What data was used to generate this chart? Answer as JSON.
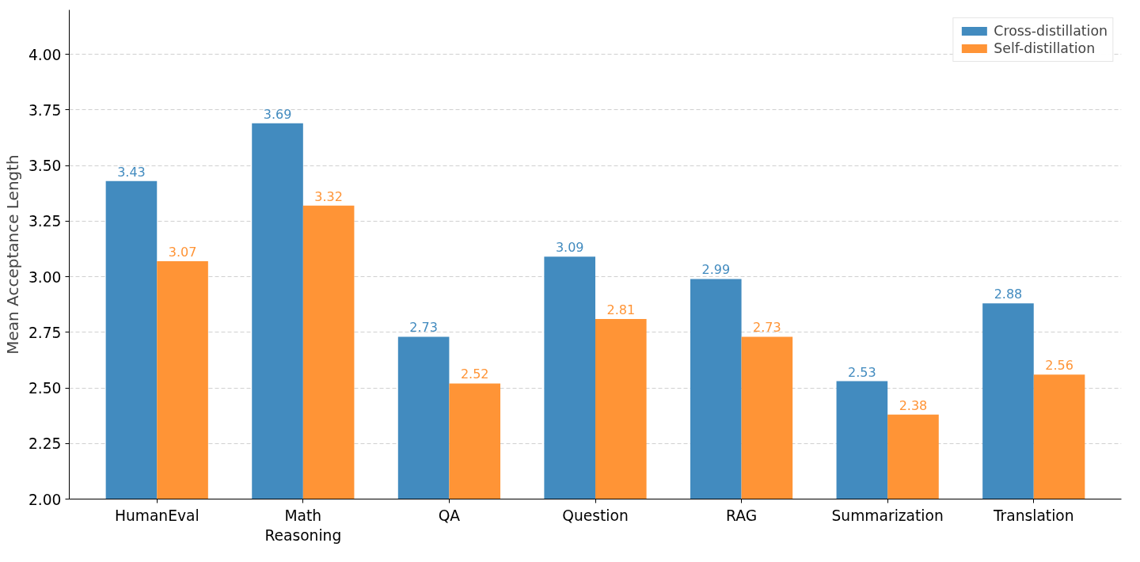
{
  "chart_data": {
    "type": "bar",
    "ylabel": "Mean Acceptance Length",
    "categories": [
      "HumanEval",
      "Math\nReasoning",
      "QA",
      "Question",
      "RAG",
      "Summarization",
      "Translation"
    ],
    "series": [
      {
        "name": "Cross-distillation",
        "color": "#428bbf",
        "values": [
          3.43,
          3.69,
          2.73,
          3.09,
          2.99,
          2.53,
          2.88
        ]
      },
      {
        "name": "Self-distillation",
        "color": "#ff9436",
        "values": [
          3.07,
          3.32,
          2.52,
          2.81,
          2.73,
          2.38,
          2.56
        ]
      }
    ],
    "ylim": [
      2.0,
      4.2
    ],
    "yticks": [
      {
        "value": 2.0,
        "label": "2.00"
      },
      {
        "value": 2.25,
        "label": "2.25"
      },
      {
        "value": 2.5,
        "label": "2.50"
      },
      {
        "value": 2.75,
        "label": "2.75"
      },
      {
        "value": 3.0,
        "label": "3.00"
      },
      {
        "value": 3.25,
        "label": "3.25"
      },
      {
        "value": 3.5,
        "label": "3.50"
      },
      {
        "value": 3.75,
        "label": "3.75"
      },
      {
        "value": 4.0,
        "label": "4.00"
      }
    ],
    "grid": "y",
    "legend": "top right",
    "data_labels": true
  }
}
